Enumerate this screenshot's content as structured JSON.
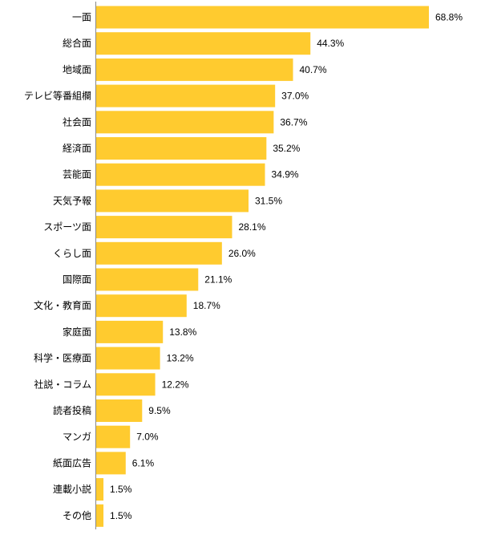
{
  "chart_data": {
    "type": "bar",
    "orientation": "horizontal",
    "categories": [
      "一面",
      "総合面",
      "地域面",
      "テレビ等番組欄",
      "社会面",
      "経済面",
      "芸能面",
      "天気予報",
      "スポーツ面",
      "くらし面",
      "国際面",
      "文化・教育面",
      "家庭面",
      "科学・医療面",
      "社説・コラム",
      "読者投稿",
      "マンガ",
      "紙面広告",
      "連載小説",
      "その他"
    ],
    "values": [
      68.8,
      44.3,
      40.7,
      37.0,
      36.7,
      35.2,
      34.9,
      31.5,
      28.1,
      26.0,
      21.1,
      18.7,
      13.8,
      13.2,
      12.2,
      9.5,
      7.0,
      6.1,
      1.5,
      1.5
    ],
    "value_labels": [
      "68.8%",
      "44.3%",
      "40.7%",
      "37.0%",
      "36.7%",
      "35.2%",
      "34.9%",
      "31.5%",
      "28.1%",
      "26.0%",
      "21.1%",
      "18.7%",
      "13.8%",
      "13.2%",
      "12.2%",
      "9.5%",
      "7.0%",
      "6.1%",
      "1.5%",
      "1.5%"
    ],
    "title": "",
    "xlabel": "",
    "ylabel": "",
    "xlim": [
      0,
      100
    ],
    "grid": false,
    "legend": "none",
    "bar_color": "#ffcb2f",
    "axis_color": "#888888"
  }
}
